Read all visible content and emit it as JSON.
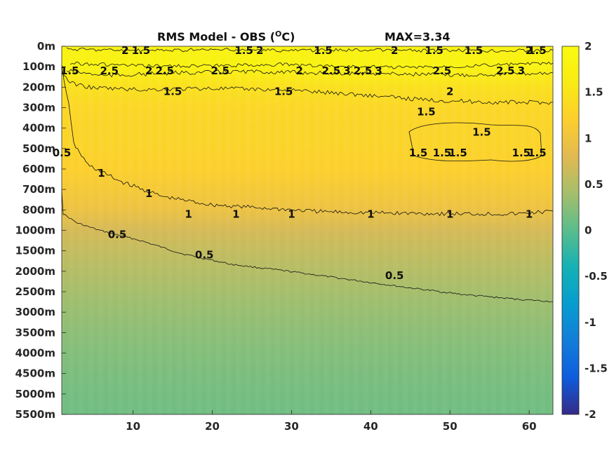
{
  "chart_data": {
    "type": "heatmap",
    "title_main": "RMS Model - OBS (",
    "title_unit_sup": "O",
    "title_unit_end": "C)",
    "title_max": "MAX=3.34",
    "x_ticks": [
      10,
      20,
      30,
      40,
      50,
      60
    ],
    "xlim": [
      1,
      63
    ],
    "y_ticks": [
      "0m",
      "100m",
      "200m",
      "300m",
      "400m",
      "500m",
      "600m",
      "700m",
      "800m",
      "1000m",
      "1500m",
      "2000m",
      "2500m",
      "3000m",
      "3500m",
      "4000m",
      "4500m",
      "5000m",
      "5500m"
    ],
    "colorbar_ticks": [
      "2",
      "1.5",
      "1",
      "0.5",
      "0",
      "-0.5",
      "-1",
      "-1.5",
      "-2"
    ],
    "color_range": [
      -2,
      2
    ],
    "colormap": "parula",
    "depth_profile": [
      {
        "depth": "0m",
        "value": 1.75
      },
      {
        "depth": "100m",
        "value": 1.8
      },
      {
        "depth": "200m",
        "value": 1.45
      },
      {
        "depth": "300m",
        "value": 1.32
      },
      {
        "depth": "400m",
        "value": 1.28
      },
      {
        "depth": "500m",
        "value": 1.27
      },
      {
        "depth": "600m",
        "value": 1.22
      },
      {
        "depth": "700m",
        "value": 1.1
      },
      {
        "depth": "800m",
        "value": 0.97
      },
      {
        "depth": "1000m",
        "value": 0.72
      },
      {
        "depth": "1500m",
        "value": 0.6
      },
      {
        "depth": "2000m",
        "value": 0.5
      },
      {
        "depth": "2500m",
        "value": 0.4
      },
      {
        "depth": "3000m",
        "value": 0.33
      },
      {
        "depth": "3500m",
        "value": 0.27
      },
      {
        "depth": "4000m",
        "value": 0.22
      },
      {
        "depth": "4500m",
        "value": 0.18
      },
      {
        "depth": "5000m",
        "value": 0.14
      },
      {
        "depth": "5500m",
        "value": 0.12
      }
    ],
    "contour_labels": [
      {
        "text": "1.5",
        "x": 11,
        "depth": "0m"
      },
      {
        "text": "2",
        "x": 9,
        "depth": "0m"
      },
      {
        "text": "2.5",
        "x": 7,
        "depth": "100m"
      },
      {
        "text": "2.5",
        "x": 14,
        "depth": "100m"
      },
      {
        "text": "2",
        "x": 12,
        "depth": "100m"
      },
      {
        "text": "2.5",
        "x": 21,
        "depth": "100m"
      },
      {
        "text": "1.5",
        "x": 24,
        "depth": "0m"
      },
      {
        "text": "2",
        "x": 26,
        "depth": "0m"
      },
      {
        "text": "1.5",
        "x": 34,
        "depth": "0m"
      },
      {
        "text": "2.5",
        "x": 35,
        "depth": "100m"
      },
      {
        "text": "3",
        "x": 37,
        "depth": "100m"
      },
      {
        "text": "2.5",
        "x": 39,
        "depth": "100m"
      },
      {
        "text": "3",
        "x": 41,
        "depth": "100m"
      },
      {
        "text": "2",
        "x": 43,
        "depth": "0m"
      },
      {
        "text": "1.5",
        "x": 48,
        "depth": "0m"
      },
      {
        "text": "2",
        "x": 31,
        "depth": "100m"
      },
      {
        "text": "2.5",
        "x": 49,
        "depth": "100m"
      },
      {
        "text": "2",
        "x": 50,
        "depth": "200m"
      },
      {
        "text": "1.5",
        "x": 53,
        "depth": "0m"
      },
      {
        "text": "2.5",
        "x": 57,
        "depth": "100m"
      },
      {
        "text": "2",
        "x": 60,
        "depth": "0m"
      },
      {
        "text": "3",
        "x": 59,
        "depth": "100m"
      },
      {
        "text": "1.5",
        "x": 61,
        "depth": "0m"
      },
      {
        "text": "1.5",
        "x": 15,
        "depth": "200m"
      },
      {
        "text": "1.5",
        "x": 29,
        "depth": "200m"
      },
      {
        "text": "1.5",
        "x": 47,
        "depth": "300m"
      },
      {
        "text": "1.5",
        "x": 2,
        "depth": "100m"
      },
      {
        "text": "1.5",
        "x": 54,
        "depth": "400m"
      },
      {
        "text": "1.5",
        "x": 46,
        "depth": "500m"
      },
      {
        "text": "1.5",
        "x": 49,
        "depth": "500m"
      },
      {
        "text": "1.5",
        "x": 51,
        "depth": "500m"
      },
      {
        "text": "1.5",
        "x": 59,
        "depth": "500m"
      },
      {
        "text": "1.5",
        "x": 61,
        "depth": "500m"
      },
      {
        "text": "0.5",
        "x": 1,
        "depth": "500m"
      },
      {
        "text": "1",
        "x": 6,
        "depth": "600m"
      },
      {
        "text": "1",
        "x": 12,
        "depth": "700m"
      },
      {
        "text": "1",
        "x": 17,
        "depth": "800m"
      },
      {
        "text": "1",
        "x": 23,
        "depth": "800m"
      },
      {
        "text": "1",
        "x": 30,
        "depth": "800m"
      },
      {
        "text": "1",
        "x": 40,
        "depth": "800m"
      },
      {
        "text": "1",
        "x": 50,
        "depth": "800m"
      },
      {
        "text": "1",
        "x": 60,
        "depth": "800m"
      },
      {
        "text": "0.5",
        "x": 8,
        "depth": "1000m"
      },
      {
        "text": "0.5",
        "x": 19,
        "depth": "1500m"
      },
      {
        "text": "0.5",
        "x": 43,
        "depth": "2000m"
      }
    ]
  }
}
